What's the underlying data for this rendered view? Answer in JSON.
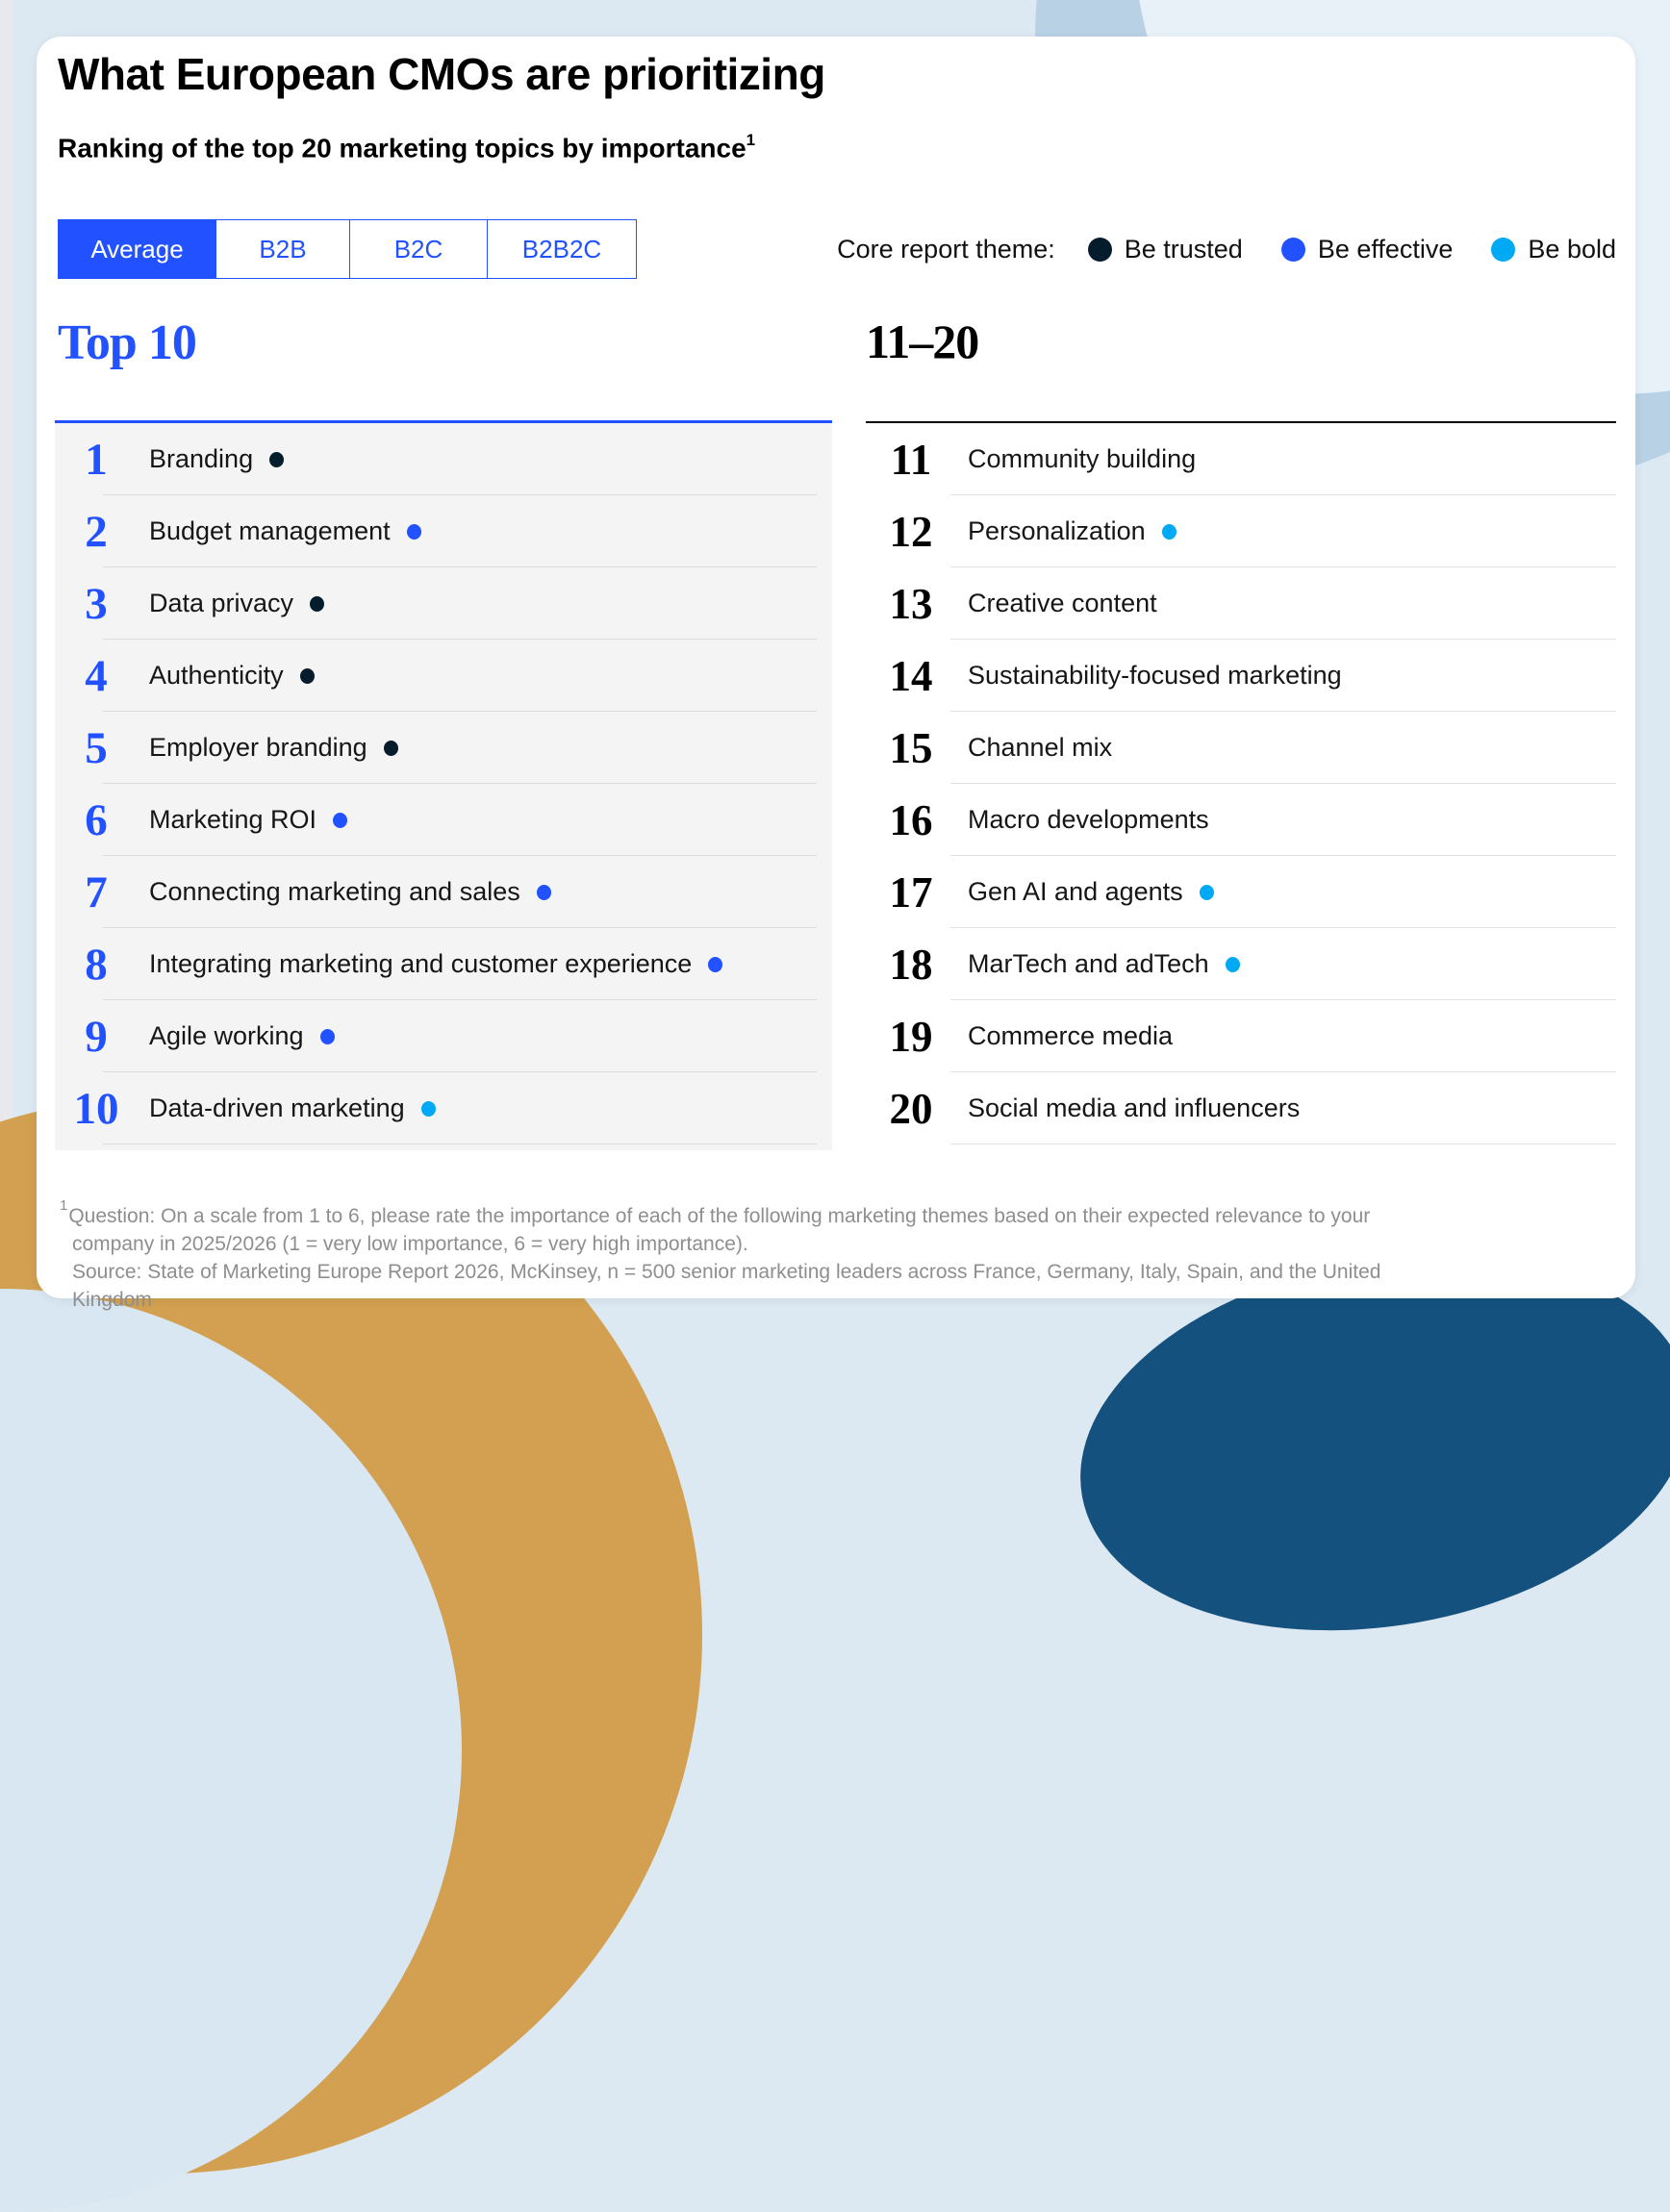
{
  "header": {
    "title": "What European CMOs are prioritizing",
    "subtitle": "Ranking of the top 20 marketing topics by importance",
    "footnote_marker": "1"
  },
  "tabs": [
    {
      "label": "Average",
      "selected": true
    },
    {
      "label": "B2B",
      "selected": false
    },
    {
      "label": "B2C",
      "selected": false
    },
    {
      "label": "B2B2C",
      "selected": false
    }
  ],
  "legend": {
    "label": "Core report theme:",
    "items": [
      {
        "label": "Be trusted",
        "color": "#051C2C"
      },
      {
        "label": "Be effective",
        "color": "#2251FF"
      },
      {
        "label": "Be bold",
        "color": "#00A9F4"
      }
    ]
  },
  "ranking": {
    "top10": {
      "header": "Top 10",
      "items": [
        {
          "rank": "1",
          "label": "Branding",
          "dot": "#051C2C",
          "theme": "Be trusted"
        },
        {
          "rank": "2",
          "label": "Budget management",
          "dot": "#2251FF",
          "theme": "Be effective"
        },
        {
          "rank": "3",
          "label": "Data privacy",
          "dot": "#051C2C",
          "theme": "Be trusted"
        },
        {
          "rank": "4",
          "label": "Authenticity",
          "dot": "#051C2C",
          "theme": "Be trusted"
        },
        {
          "rank": "5",
          "label": "Employer branding",
          "dot": "#051C2C",
          "theme": "Be trusted"
        },
        {
          "rank": "6",
          "label": "Marketing ROI",
          "dot": "#2251FF",
          "theme": "Be effective"
        },
        {
          "rank": "7",
          "label": "Connecting marketing and sales",
          "dot": "#2251FF",
          "theme": "Be effective"
        },
        {
          "rank": "8",
          "label": "Integrating marketing and customer experience",
          "dot": "#2251FF",
          "theme": "Be effective"
        },
        {
          "rank": "9",
          "label": "Agile working",
          "dot": "#2251FF",
          "theme": "Be effective"
        },
        {
          "rank": "10",
          "label": "Data-driven marketing",
          "dot": "#00A9F4",
          "theme": "Be bold"
        }
      ]
    },
    "eleven20": {
      "header": "11–20",
      "items": [
        {
          "rank": "11",
          "label": "Community building",
          "dot": null,
          "theme": null
        },
        {
          "rank": "12",
          "label": "Personalization",
          "dot": "#00A9F4",
          "theme": "Be bold"
        },
        {
          "rank": "13",
          "label": "Creative content",
          "dot": null,
          "theme": null
        },
        {
          "rank": "14",
          "label": "Sustainability-focused marketing",
          "dot": null,
          "theme": null
        },
        {
          "rank": "15",
          "label": "Channel mix",
          "dot": null,
          "theme": null
        },
        {
          "rank": "16",
          "label": "Macro developments",
          "dot": null,
          "theme": null
        },
        {
          "rank": "17",
          "label": "Gen AI and agents",
          "dot": "#00A9F4",
          "theme": "Be bold"
        },
        {
          "rank": "18",
          "label": "MarTech and adTech",
          "dot": "#00A9F4",
          "theme": "Be bold"
        },
        {
          "rank": "19",
          "label": "Commerce media",
          "dot": null,
          "theme": null
        },
        {
          "rank": "20",
          "label": "Social media and influencers",
          "dot": null,
          "theme": null
        }
      ]
    }
  },
  "footnote": {
    "marker": "1",
    "question": "Question: On a scale from 1 to 6, please rate the importance of each of the following marketing themes based on their expected relevance to your company in 2025/2026 (1 = very low importance, 6 = very high importance).",
    "source": "Source: State of Marketing Europe Report 2026, McKinsey, n = 500 senior marketing leaders across France, Germany, Italy, Spain, and the United Kingdom"
  },
  "colors": {
    "accent_blue": "#2251FF",
    "trusted_navy": "#051C2C",
    "bold_cyan": "#00A9F4"
  },
  "chart_data": {
    "type": "table",
    "title": "What European CMOs are prioritizing",
    "subtitle": "Ranking of the top 20 marketing topics by importance",
    "selected_view": "Average",
    "views": [
      "Average",
      "B2B",
      "B2C",
      "B2B2C"
    ],
    "legend_title": "Core report theme:",
    "legend": [
      "Be trusted",
      "Be effective",
      "Be bold"
    ],
    "ranking": [
      {
        "rank": 1,
        "topic": "Branding",
        "theme": "Be trusted"
      },
      {
        "rank": 2,
        "topic": "Budget management",
        "theme": "Be effective"
      },
      {
        "rank": 3,
        "topic": "Data privacy",
        "theme": "Be trusted"
      },
      {
        "rank": 4,
        "topic": "Authenticity",
        "theme": "Be trusted"
      },
      {
        "rank": 5,
        "topic": "Employer branding",
        "theme": "Be trusted"
      },
      {
        "rank": 6,
        "topic": "Marketing ROI",
        "theme": "Be effective"
      },
      {
        "rank": 7,
        "topic": "Connecting marketing and sales",
        "theme": "Be effective"
      },
      {
        "rank": 8,
        "topic": "Integrating marketing and customer experience",
        "theme": "Be effective"
      },
      {
        "rank": 9,
        "topic": "Agile working",
        "theme": "Be effective"
      },
      {
        "rank": 10,
        "topic": "Data-driven marketing",
        "theme": "Be bold"
      },
      {
        "rank": 11,
        "topic": "Community building",
        "theme": null
      },
      {
        "rank": 12,
        "topic": "Personalization",
        "theme": "Be bold"
      },
      {
        "rank": 13,
        "topic": "Creative content",
        "theme": null
      },
      {
        "rank": 14,
        "topic": "Sustainability-focused marketing",
        "theme": null
      },
      {
        "rank": 15,
        "topic": "Channel mix",
        "theme": null
      },
      {
        "rank": 16,
        "topic": "Macro developments",
        "theme": null
      },
      {
        "rank": 17,
        "topic": "Gen AI and agents",
        "theme": "Be bold"
      },
      {
        "rank": 18,
        "topic": "MarTech and adTech",
        "theme": "Be bold"
      },
      {
        "rank": 19,
        "topic": "Commerce media",
        "theme": null
      },
      {
        "rank": 20,
        "topic": "Social media and influencers",
        "theme": null
      }
    ],
    "question_footnote": "On a scale from 1 to 6, please rate the importance of each of the following marketing themes based on their expected relevance to your company in 2025/2026 (1 = very low importance, 6 = very high importance).",
    "source": "State of Marketing Europe Report 2026, McKinsey, n = 500 senior marketing leaders across France, Germany, Italy, Spain, and the United Kingdom"
  }
}
